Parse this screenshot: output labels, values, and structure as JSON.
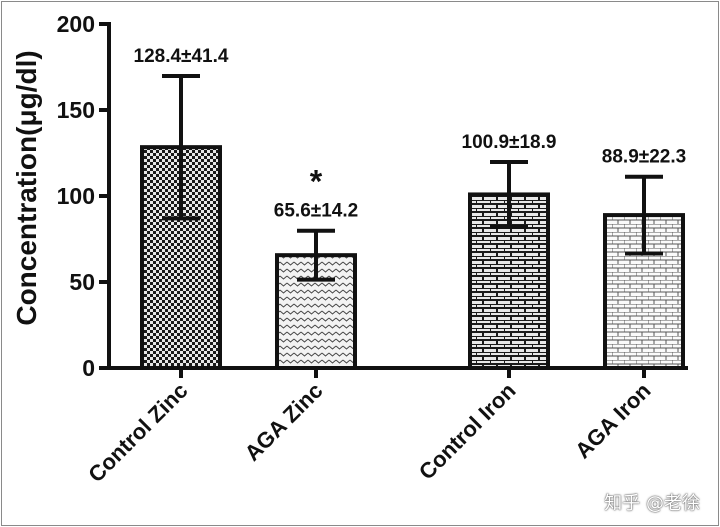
{
  "chart_data": {
    "type": "bar",
    "title": "",
    "xlabel": "",
    "ylabel": "Concentration(μg/dl)",
    "ylim": [
      0,
      200
    ],
    "yticks": [
      0,
      50,
      100,
      150,
      200
    ],
    "categories": [
      "Control Zinc",
      "AGA Zinc",
      "Control Iron",
      "AGA Iron"
    ],
    "values": [
      128.4,
      65.6,
      100.9,
      88.9
    ],
    "errors": [
      41.4,
      14.2,
      18.9,
      22.3
    ],
    "value_labels": [
      "128.4±41.4",
      "65.6±14.2",
      "100.9±18.9",
      "88.9±22.3"
    ],
    "patterns": [
      "dense-check",
      "light-dots",
      "brick",
      "light-brick"
    ],
    "annotations": [
      {
        "category": "AGA Zinc",
        "text": "*"
      }
    ],
    "colors": {
      "bar_edge": "#111111",
      "axis": "#111111"
    }
  },
  "watermark": "知乎 @老徐"
}
